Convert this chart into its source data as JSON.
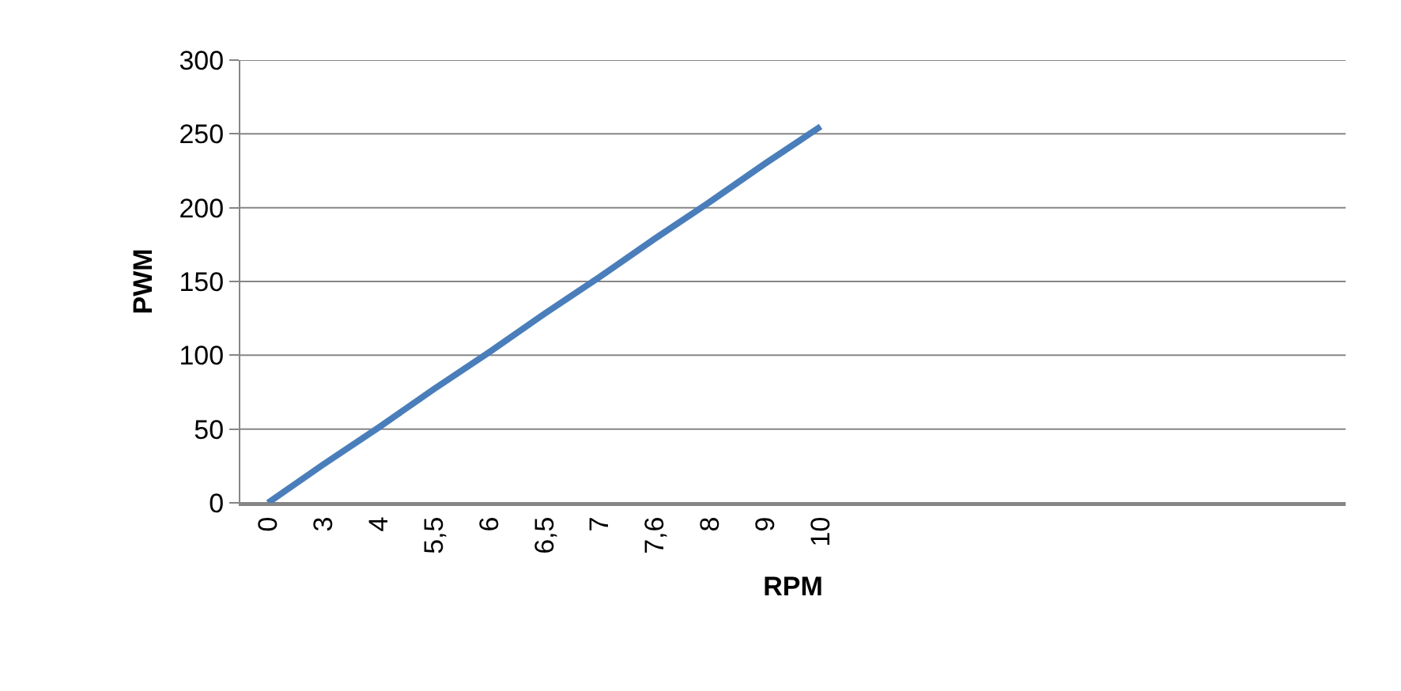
{
  "chart_data": {
    "type": "line",
    "xlabel": "RPM",
    "ylabel": "PWM",
    "categories": [
      "0",
      "3",
      "4",
      "5,5",
      "6",
      "6,5",
      "7",
      "7,6",
      "8",
      "9",
      "10",
      null,
      null,
      null,
      null,
      null,
      null,
      null,
      null,
      null
    ],
    "series": [
      {
        "color": "#4a7ebb",
        "values": [
          0,
          26,
          51,
          77,
          102,
          128,
          153,
          179,
          204,
          230,
          255,
          null,
          null,
          null,
          null,
          null,
          null,
          null,
          null,
          null
        ]
      }
    ],
    "ylim": [
      0,
      300
    ],
    "yticks": [
      0,
      50,
      100,
      150,
      200,
      250,
      300
    ],
    "grid": "y",
    "marker": "none",
    "line_style": "solid"
  }
}
